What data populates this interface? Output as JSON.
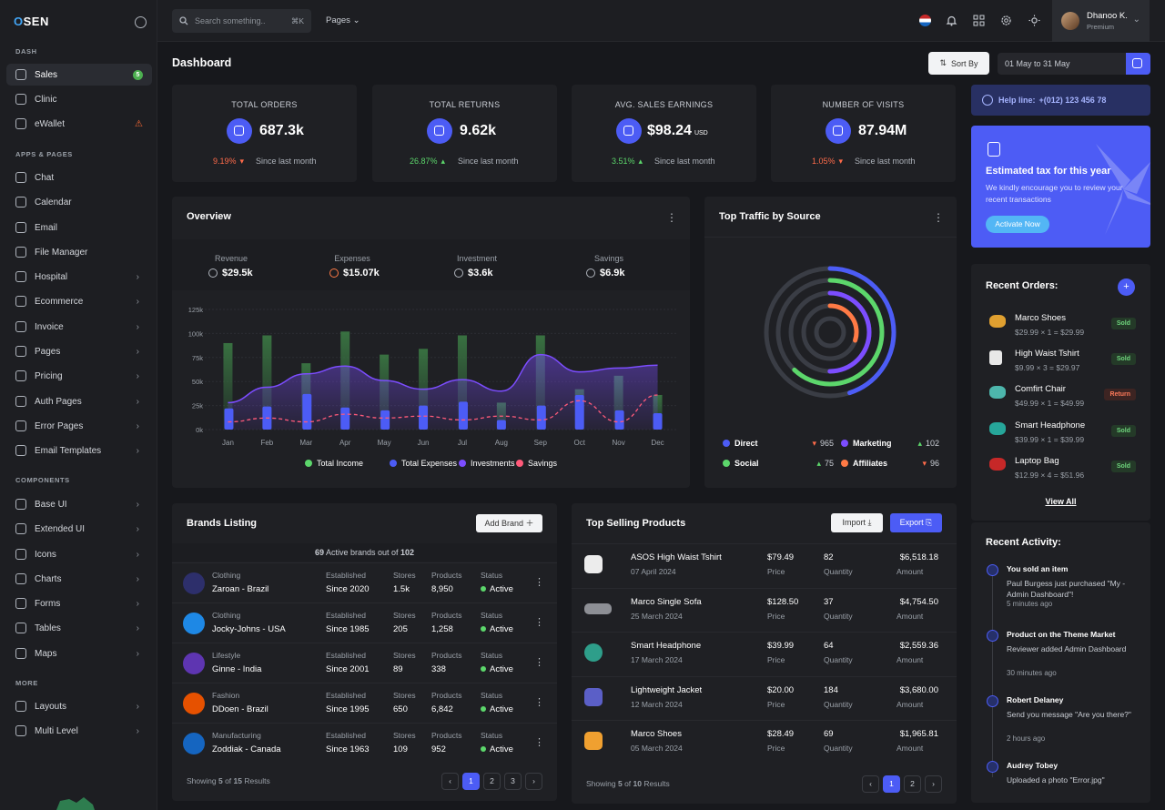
{
  "app": {
    "logo_pre": "",
    "logo_dot": "O",
    "logo_post": "SEN"
  },
  "sidebar": {
    "sections": [
      "DASH",
      "APPS & PAGES",
      "COMPONENTS",
      "MORE"
    ],
    "items": [
      {
        "label": "Sales",
        "icon": "dashboard-icon",
        "badge": "5"
      },
      {
        "label": "Clinic",
        "icon": "hospital-icon"
      },
      {
        "label": "eWallet",
        "icon": "wallet-icon",
        "warn": "⚠"
      },
      {
        "label": "Chat",
        "icon": "chat-icon"
      },
      {
        "label": "Calendar",
        "icon": "calendar-icon"
      },
      {
        "label": "Email",
        "icon": "mail-icon"
      },
      {
        "label": "File Manager",
        "icon": "folder-icon"
      },
      {
        "label": "Hospital",
        "icon": "hospital-icon",
        "chev": "›"
      },
      {
        "label": "Ecommerce",
        "icon": "basket-icon",
        "chev": "›"
      },
      {
        "label": "Invoice",
        "icon": "invoice-icon",
        "chev": "›"
      },
      {
        "label": "Pages",
        "icon": "pages-icon",
        "chev": "›"
      },
      {
        "label": "Pricing",
        "icon": "pricing-icon",
        "chev": "›"
      },
      {
        "label": "Auth Pages",
        "icon": "lock-icon",
        "chev": "›"
      },
      {
        "label": "Error Pages",
        "icon": "error-icon",
        "chev": "›"
      },
      {
        "label": "Email Templates",
        "icon": "template-icon",
        "chev": "›"
      },
      {
        "label": "Base UI",
        "icon": "base-ui-icon",
        "chev": "›"
      },
      {
        "label": "Extended UI",
        "icon": "extended-ui-icon",
        "chev": "›"
      },
      {
        "label": "Icons",
        "icon": "feather-icon",
        "chev": "›"
      },
      {
        "label": "Charts",
        "icon": "chart-icon",
        "chev": "›"
      },
      {
        "label": "Forms",
        "icon": "form-icon",
        "chev": "›"
      },
      {
        "label": "Tables",
        "icon": "table-icon",
        "chev": "›"
      },
      {
        "label": "Maps",
        "icon": "map-pin-icon",
        "chev": "›"
      },
      {
        "label": "Layouts",
        "icon": "layout-icon",
        "chev": "›"
      },
      {
        "label": "Multi Level",
        "icon": "multilevel-icon",
        "chev": "›"
      }
    ]
  },
  "topbar": {
    "search_placeholder": "Search something..",
    "search_kbd": "⌘K",
    "pages_label": "Pages ⌄",
    "user_name": "Dhanoo K.",
    "user_role": "Premium",
    "user_chev": "⌄"
  },
  "page": {
    "title": "Dashboard",
    "sort_label": "Sort By",
    "date_range": "01 May to 31 May"
  },
  "stats": [
    {
      "title": "TOTAL ORDERS",
      "value": "687.3k",
      "unit": "",
      "pct": "9.19%",
      "arrow": "▾",
      "trend": "down",
      "since": "Since last month",
      "icon": "box-icon"
    },
    {
      "title": "TOTAL RETURNS",
      "value": "9.62k",
      "unit": "",
      "pct": "26.87%",
      "arrow": "▴",
      "trend": "up",
      "since": "Since last month",
      "icon": "return-icon"
    },
    {
      "title": "AVG. SALES EARNINGS",
      "value": "$98.24",
      "unit": "USD",
      "pct": "3.51%",
      "arrow": "▴",
      "trend": "up",
      "since": "Since last month",
      "icon": "wallet-icon"
    },
    {
      "title": "NUMBER OF VISITS",
      "value": "87.94M",
      "unit": "",
      "pct": "1.05%",
      "arrow": "▾",
      "trend": "down",
      "since": "Since last month",
      "icon": "eye-icon"
    }
  ],
  "overview": {
    "title": "Overview",
    "metrics": [
      {
        "label": "Revenue",
        "value": "$29.5k",
        "icon": "revenue-icon"
      },
      {
        "label": "Expenses",
        "value": "$15.07k",
        "icon": "expenses-icon"
      },
      {
        "label": "Investment",
        "value": "$3.6k",
        "icon": "investment-icon"
      },
      {
        "label": "Savings",
        "value": "$6.9k",
        "icon": "savings-icon"
      }
    ]
  },
  "chart_data": [
    {
      "type": "bar",
      "title": "Overview",
      "categories": [
        "Jan",
        "Feb",
        "Mar",
        "Apr",
        "May",
        "Jun",
        "Jul",
        "Aug",
        "Sep",
        "Oct",
        "Nov",
        "Dec"
      ],
      "y_ticks": [
        "0k",
        "25k",
        "50k",
        "75k",
        "100k",
        "125k"
      ],
      "ylim": [
        0,
        125
      ],
      "series": [
        {
          "name": "Total Income",
          "kind": "bar",
          "color": "#3b7a44",
          "values": [
            90,
            98,
            69,
            102,
            78,
            84,
            98,
            28,
            98,
            42,
            56,
            36
          ]
        },
        {
          "name": "Total Expenses",
          "kind": "bar",
          "color": "#4c5cf5",
          "values": [
            22,
            24,
            37,
            23,
            20,
            25,
            29,
            10,
            25,
            36,
            20,
            17
          ]
        },
        {
          "name": "Investments",
          "kind": "area",
          "color": "#7c4dff",
          "values": [
            28,
            44,
            58,
            66,
            51,
            42,
            52,
            40,
            78,
            60,
            64,
            67
          ]
        },
        {
          "name": "Savings",
          "kind": "dashed-line",
          "color": "#ff5a7a",
          "values": [
            8,
            12,
            8,
            16,
            12,
            14,
            10,
            14,
            10,
            30,
            8,
            36
          ]
        }
      ]
    },
    {
      "type": "radial",
      "title": "Top Traffic by Source",
      "series": [
        {
          "name": "Direct",
          "value": 965,
          "trend": "down",
          "color": "#4c5cf5",
          "pct": 0.45
        },
        {
          "name": "Marketing",
          "value": 102,
          "trend": "up",
          "color": "#7c4dff",
          "pct": 0.5
        },
        {
          "name": "Social",
          "value": 75,
          "trend": "up",
          "color": "#5cd66b",
          "pct": 0.62
        },
        {
          "name": "Affiliates",
          "value": 96,
          "trend": "down",
          "color": "#ff7a45",
          "pct": 0.3
        }
      ]
    }
  ],
  "traffic": {
    "title": "Top Traffic by Source",
    "legend": [
      {
        "name": "Direct",
        "value": "965",
        "arrow": "▾",
        "color": "#4c5cf5",
        "tc": "#ff6b4a"
      },
      {
        "name": "Marketing",
        "value": "102",
        "arrow": "▴",
        "color": "#7c4dff",
        "tc": "#5cd66b"
      },
      {
        "name": "Social",
        "value": "75",
        "arrow": "▴",
        "color": "#5cd66b",
        "tc": "#5cd66b"
      },
      {
        "name": "Affiliates",
        "value": "96",
        "arrow": "▾",
        "color": "#ff7a45",
        "tc": "#ff6b4a"
      }
    ]
  },
  "help": {
    "label": "Help line: ",
    "phone": "+(012) 123 456 78"
  },
  "tax": {
    "title": "Estimated tax for this year",
    "desc": "We kindly encourage you to review your recent transactions",
    "button": "Activate Now"
  },
  "orders": {
    "title": "Recent Orders:",
    "view_all": "View All",
    "items": [
      {
        "name": "Marco Shoes",
        "price": "$29.99 × 1 = $29.99",
        "status": "Sold",
        "icon": "shoe-icon"
      },
      {
        "name": "High Waist Tshirt",
        "price": "$9.99 × 3 = $29.97",
        "status": "Sold",
        "icon": "tshirt-icon"
      },
      {
        "name": "Comfirt Chair",
        "price": "$49.99 × 1 = $49.99",
        "status": "Return",
        "icon": "chair-icon"
      },
      {
        "name": "Smart Headphone",
        "price": "$39.99 × 1 = $39.99",
        "status": "Sold",
        "icon": "headphone-icon"
      },
      {
        "name": "Laptop Bag",
        "price": "$12.99 × 4 = $51.96",
        "status": "Sold",
        "icon": "bag-icon"
      }
    ]
  },
  "activity": {
    "title": "Recent Activity:",
    "items": [
      {
        "title": "You sold an item",
        "desc": "Paul Burgess just purchased \"My - Admin Dashboard\"!",
        "time": "5 minutes ago"
      },
      {
        "title": "Product on the Theme Market",
        "desc": "Reviewer added Admin Dashboard",
        "time": "30 minutes ago"
      },
      {
        "title": "Robert Delaney",
        "desc": "Send you message \"Are you there?\"",
        "time": "2 hours ago"
      },
      {
        "title": "Audrey Tobey",
        "desc": "Uploaded a photo \"Error.jpg\"",
        "time": ""
      }
    ]
  },
  "brands": {
    "title": "Brands Listing",
    "add": "Add Brand ＋",
    "summary_pre": "69",
    "summary_mid": " Active brands out of ",
    "summary_post": "102",
    "headers": {
      "est": "Established",
      "stores": "Stores",
      "products": "Products",
      "status": "Status"
    },
    "rows": [
      {
        "cat": "Clothing",
        "name": "Zaroan - Brazil",
        "est": "Since 2020",
        "stores": "1.5k",
        "products": "8,950",
        "status": "Active",
        "color": "#2d2f6b"
      },
      {
        "cat": "Clothing",
        "name": "Jocky-Johns - USA",
        "est": "Since 1985",
        "stores": "205",
        "products": "1,258",
        "status": "Active",
        "color": "#1e88e5"
      },
      {
        "cat": "Lifestyle",
        "name": "Ginne - India",
        "est": "Since 2001",
        "stores": "89",
        "products": "338",
        "status": "Active",
        "color": "#5e35b1"
      },
      {
        "cat": "Fashion",
        "name": "DDoen - Brazil",
        "est": "Since 1995",
        "stores": "650",
        "products": "6,842",
        "status": "Active",
        "color": "#e65100"
      },
      {
        "cat": "Manufacturing",
        "name": "Zoddiak - Canada",
        "est": "Since 1963",
        "stores": "109",
        "products": "952",
        "status": "Active",
        "color": "#1565c0"
      }
    ],
    "showing_pre": "Showing ",
    "showing_n": "5",
    "showing_mid": " of ",
    "showing_total": "15",
    "showing_post": " Results",
    "pages": [
      "‹",
      "1",
      "2",
      "3",
      "›"
    ]
  },
  "products": {
    "title": "Top Selling Products",
    "import": "Import ⤓",
    "export": "Export ⎘",
    "labels": {
      "price": "Price",
      "qty": "Quantity",
      "amount": "Amount"
    },
    "rows": [
      {
        "name": "ASOS High Waist Tshirt",
        "date": "07 April 2024",
        "price": "$79.49",
        "qty": "82",
        "amount": "$6,518.18",
        "icon": "tshirt-icon"
      },
      {
        "name": "Marco Single Sofa",
        "date": "25 March 2024",
        "price": "$128.50",
        "qty": "37",
        "amount": "$4,754.50",
        "icon": "sofa-icon"
      },
      {
        "name": "Smart Headphone",
        "date": "17 March 2024",
        "price": "$39.99",
        "qty": "64",
        "amount": "$2,559.36",
        "icon": "headphone-icon"
      },
      {
        "name": "Lightweight Jacket",
        "date": "12 March 2024",
        "price": "$20.00",
        "qty": "184",
        "amount": "$3,680.00",
        "icon": "jacket-icon"
      },
      {
        "name": "Marco Shoes",
        "date": "05 March 2024",
        "price": "$28.49",
        "qty": "69",
        "amount": "$1,965.81",
        "icon": "shoe-icon"
      }
    ],
    "showing_pre": "Showing ",
    "showing_n": "5",
    "showing_mid": " of ",
    "showing_total": "10",
    "showing_post": " Results",
    "pages": [
      "‹",
      "1",
      "2",
      "›"
    ]
  }
}
